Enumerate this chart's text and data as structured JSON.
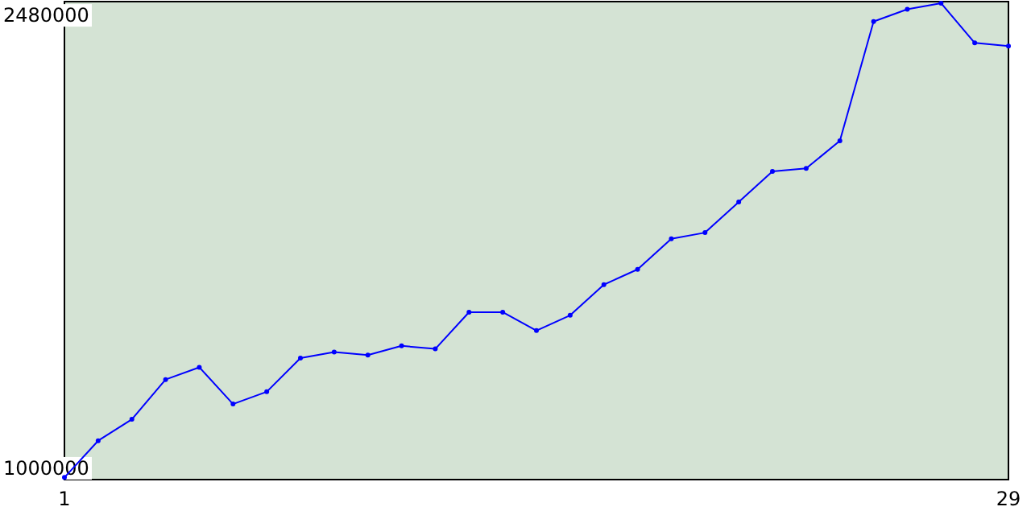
{
  "chart_data": {
    "type": "line",
    "x": [
      1,
      2,
      3,
      4,
      5,
      6,
      7,
      8,
      9,
      10,
      11,
      12,
      13,
      14,
      15,
      16,
      17,
      18,
      19,
      20,
      21,
      22,
      23,
      24,
      25,
      26,
      27,
      28,
      29
    ],
    "series": [
      {
        "color": "#0000ff",
        "values": [
          970000,
          1090000,
          1160000,
          1290000,
          1330000,
          1210000,
          1250000,
          1360000,
          1380000,
          1370000,
          1400000,
          1390000,
          1510000,
          1510000,
          1450000,
          1500000,
          1600000,
          1650000,
          1750000,
          1770000,
          1870000,
          1970000,
          1980000,
          2070000,
          2460000,
          2500000,
          2520000,
          2390000,
          2380000
        ]
      }
    ],
    "xlim": [
      1,
      29
    ],
    "xticks": [
      1,
      29
    ],
    "ylim": [
      963000,
      2525000
    ],
    "yticks": [
      1000000,
      2480000
    ],
    "marker": "circle",
    "line_style": "solid",
    "grid": false
  }
}
